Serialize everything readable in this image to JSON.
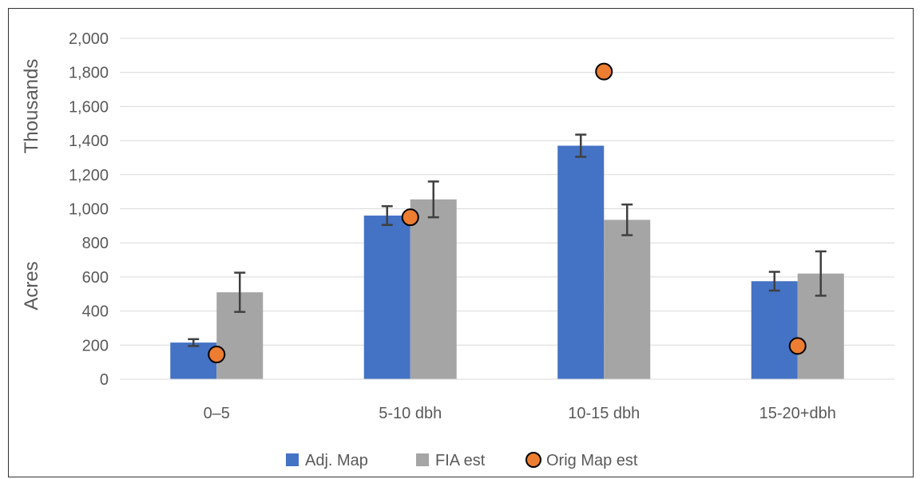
{
  "chart_data": {
    "type": "bar",
    "categories": [
      "0–5",
      "5-10 dbh",
      "10-15 dbh",
      "15-20+dbh"
    ],
    "series": [
      {
        "name": "Adj. Map",
        "kind": "bar",
        "color": "#4472C4",
        "values": [
          215,
          960,
          1370,
          575
        ],
        "error": [
          20,
          55,
          65,
          55
        ]
      },
      {
        "name": "FIA est",
        "kind": "bar",
        "color": "#A5A5A5",
        "values": [
          510,
          1055,
          935,
          620
        ],
        "error": [
          115,
          105,
          90,
          130
        ]
      },
      {
        "name": "Orig Map est",
        "kind": "marker",
        "color": "#ED7D31",
        "values": [
          145,
          950,
          1805,
          195
        ]
      }
    ],
    "yticks": [
      "0",
      "200",
      "400",
      "600",
      "800",
      "1,000",
      "1,200",
      "1,400",
      "1,600",
      "1,800",
      "2,000"
    ],
    "ylim": [
      0,
      2000
    ],
    "ylabel_top": "Thousands",
    "ylabel_bottom": "Acres",
    "xlabel": "",
    "grid": true,
    "legend_position": "bottom-center"
  }
}
